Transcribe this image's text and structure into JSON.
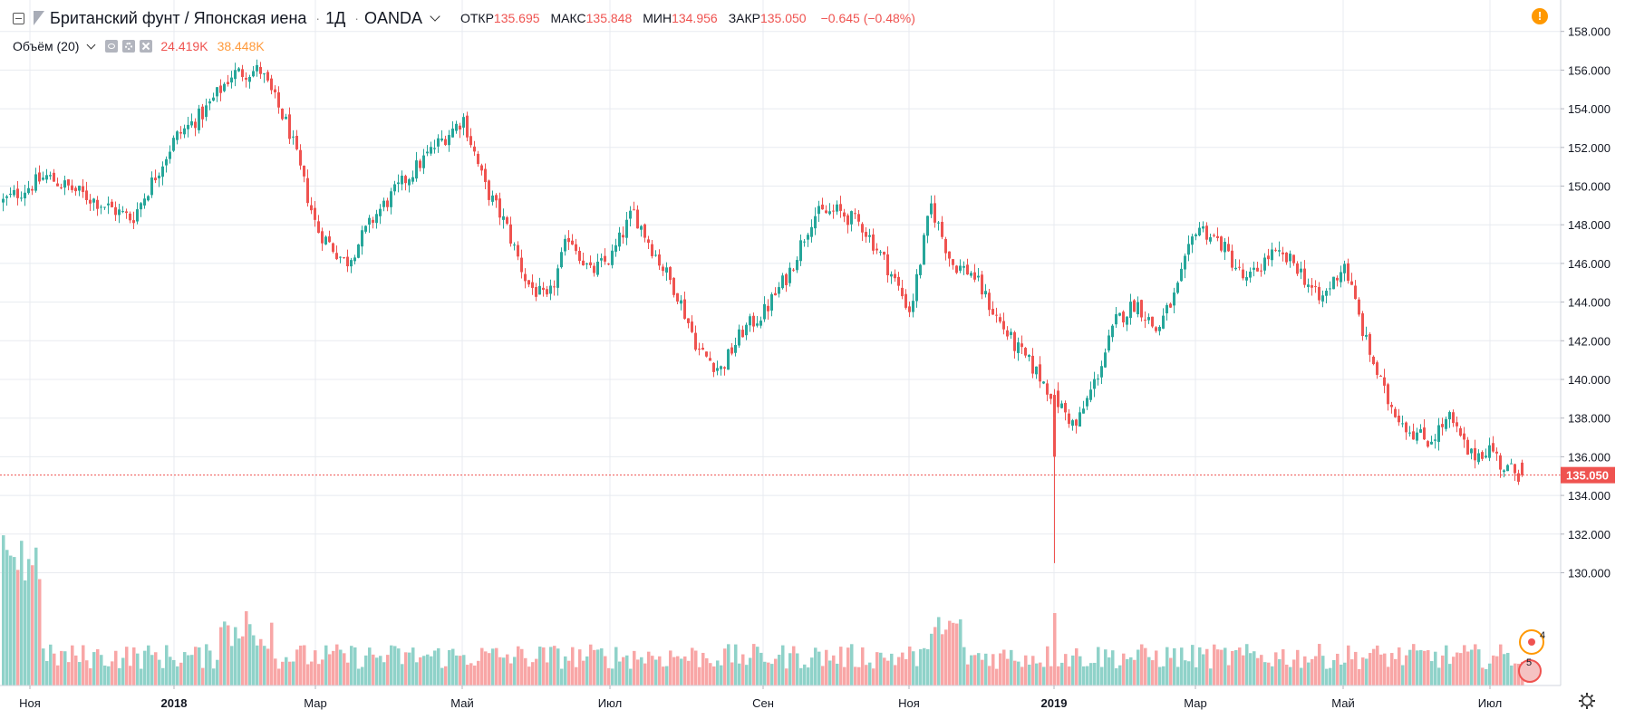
{
  "header": {
    "symbol_title": "Британский фунт / Японская иена",
    "interval": "1Д",
    "exchange": "OANDA",
    "ohlc": [
      {
        "label": "ОТКР",
        "value": "135.695"
      },
      {
        "label": "МАКС",
        "value": "135.848"
      },
      {
        "label": "МИН",
        "value": "134.956"
      },
      {
        "label": "ЗАКР",
        "value": "135.050"
      }
    ],
    "change": "−0.645 (−0.48%)"
  },
  "volume_legend": {
    "name": "Объём (20)",
    "value": "24.419K",
    "ma_value": "38.448K"
  },
  "price_label": "135.050",
  "badges": {
    "upper": "4",
    "lower": "5"
  },
  "colors": {
    "up": "#26a69a",
    "down": "#ef5350",
    "up_volume": "#8fd2c9",
    "down_volume": "#f8a6a6",
    "last_price": "#ef5350",
    "grid": "#e8ebf0",
    "volume_ma": "#ff9a3c",
    "alert": "#ff9800"
  },
  "chart_data": {
    "type": "candlestick",
    "title": "Британский фунт / Японская иена · 1Д · OANDA",
    "y_ticks": [
      "158.000",
      "156.000",
      "154.000",
      "152.000",
      "150.000",
      "148.000",
      "146.000",
      "144.000",
      "142.000",
      "140.000",
      "138.000",
      "136.000",
      "134.000",
      "132.000",
      "130.000"
    ],
    "ylim": [
      128.8,
      159.0
    ],
    "x_ticks": [
      {
        "label": "Ноя",
        "bold": false
      },
      {
        "label": "2018",
        "bold": true
      },
      {
        "label": "Мар",
        "bold": false
      },
      {
        "label": "Май",
        "bold": false
      },
      {
        "label": "Июл",
        "bold": false
      },
      {
        "label": "Сен",
        "bold": false
      },
      {
        "label": "Ноя",
        "bold": false
      },
      {
        "label": "2019",
        "bold": true
      },
      {
        "label": "Мар",
        "bold": false
      },
      {
        "label": "Май",
        "bold": false
      },
      {
        "label": "Июл",
        "bold": false
      }
    ],
    "last_close": 135.05,
    "close_path": [
      [
        "Ноя",
        149.2
      ],
      [
        "Ноя",
        150.5
      ],
      [
        "Ноя",
        149.4
      ],
      [
        "Ноя",
        148.3
      ],
      [
        "2018",
        152.5
      ],
      [
        "2018",
        153.8
      ],
      [
        "2018",
        155.8
      ],
      [
        "2018",
        156.0
      ],
      [
        "2018",
        153.0
      ],
      [
        "Мар",
        147.8
      ],
      [
        "Мар",
        146.0
      ],
      [
        "Мар",
        148.5
      ],
      [
        "Мар",
        150.3
      ],
      [
        "Мар",
        152.0
      ],
      [
        "Май",
        153.5
      ],
      [
        "Май",
        150.0
      ],
      [
        "Май",
        148.0
      ],
      [
        "Май",
        145.0
      ],
      [
        "Май",
        144.0
      ],
      [
        "Май",
        147.5
      ],
      [
        "Май",
        145.5
      ],
      [
        "Июл",
        146.3
      ],
      [
        "Июл",
        148.7
      ],
      [
        "Июл",
        146.5
      ],
      [
        "Июл",
        144.5
      ],
      [
        "Июл",
        141.5
      ],
      [
        "Июл",
        140.5
      ],
      [
        "Июл",
        142.5
      ],
      [
        "Сен",
        143.5
      ],
      [
        "Сен",
        145.5
      ],
      [
        "Сен",
        148.5
      ],
      [
        "Сен",
        148.7
      ],
      [
        "Сен",
        148.0
      ],
      [
        "Сен",
        146.0
      ],
      [
        "Ноя",
        143.5
      ],
      [
        "Ноя",
        149.0
      ],
      [
        "Ноя",
        146.0
      ],
      [
        "Ноя",
        145.5
      ],
      [
        "Ноя",
        143.5
      ],
      [
        "Ноя",
        141.8
      ],
      [
        "Ноя",
        140.5
      ],
      [
        "2019",
        139.0
      ],
      [
        "2019",
        137.5
      ],
      [
        "2019",
        140.0
      ],
      [
        "2019",
        143.0
      ],
      [
        "2019",
        144.0
      ],
      [
        "2019",
        142.5
      ],
      [
        "2019",
        144.5
      ],
      [
        "Мар",
        148.0
      ],
      [
        "Мар",
        147.0
      ],
      [
        "Мар",
        145.0
      ],
      [
        "Мар",
        146.5
      ],
      [
        "Мар",
        146.0
      ],
      [
        "Мар",
        144.0
      ],
      [
        "Май",
        146.0
      ],
      [
        "Май",
        142.0
      ],
      [
        "Май",
        139.0
      ],
      [
        "Май",
        137.5
      ],
      [
        "Май",
        136.8
      ],
      [
        "Май",
        138.0
      ],
      [
        "Май",
        136.0
      ],
      [
        "Июл",
        136.5
      ],
      [
        "Июл",
        135.5
      ],
      [
        "Июл",
        135.05
      ]
    ],
    "volume": {
      "name": "Объём (20)",
      "scale": "relative",
      "early_spike_region": "Ноя",
      "spike_region": "2019"
    }
  }
}
